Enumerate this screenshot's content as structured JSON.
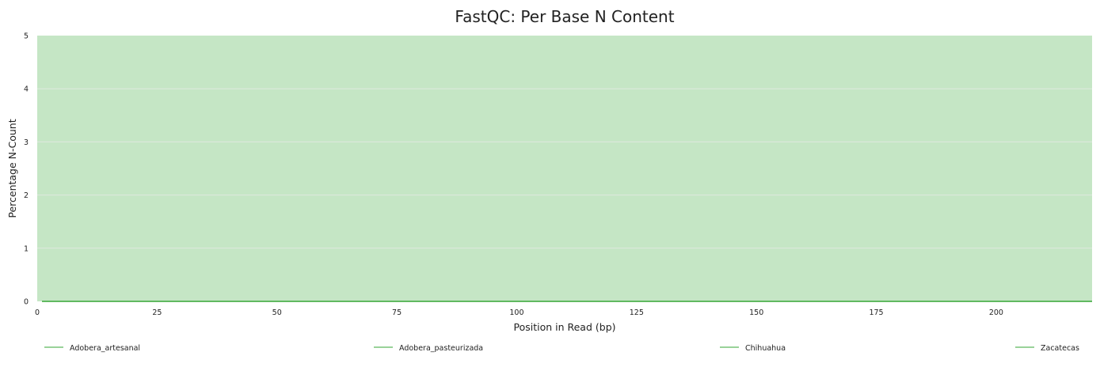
{
  "chart_data": {
    "type": "line",
    "title": "FastQC: Per Base N Content",
    "xlabel": "Position in Read (bp)",
    "ylabel": "Percentage N-Count",
    "xlim": [
      0,
      220
    ],
    "ylim": [
      0,
      5
    ],
    "x_ticks": [
      0,
      25,
      50,
      75,
      100,
      125,
      150,
      175,
      200
    ],
    "y_ticks": [
      0,
      1,
      2,
      3,
      4,
      5
    ],
    "grid": true,
    "legend_position": "bottom",
    "background_band": {
      "from": 0,
      "to": 5,
      "color": "#c5e6c5"
    },
    "series": [
      {
        "name": "Adobera_artesanal",
        "color": "#5cb85c",
        "x": [
          1,
          220
        ],
        "y": [
          0,
          0
        ]
      },
      {
        "name": "Adobera_pasteurizada",
        "color": "#5cb85c",
        "x": [
          1,
          220
        ],
        "y": [
          0,
          0
        ]
      },
      {
        "name": "Chihuahua",
        "color": "#5cb85c",
        "x": [
          1,
          220
        ],
        "y": [
          0,
          0
        ]
      },
      {
        "name": "Zacatecas",
        "color": "#5cb85c",
        "x": [
          1,
          220
        ],
        "y": [
          0,
          0
        ]
      }
    ]
  }
}
